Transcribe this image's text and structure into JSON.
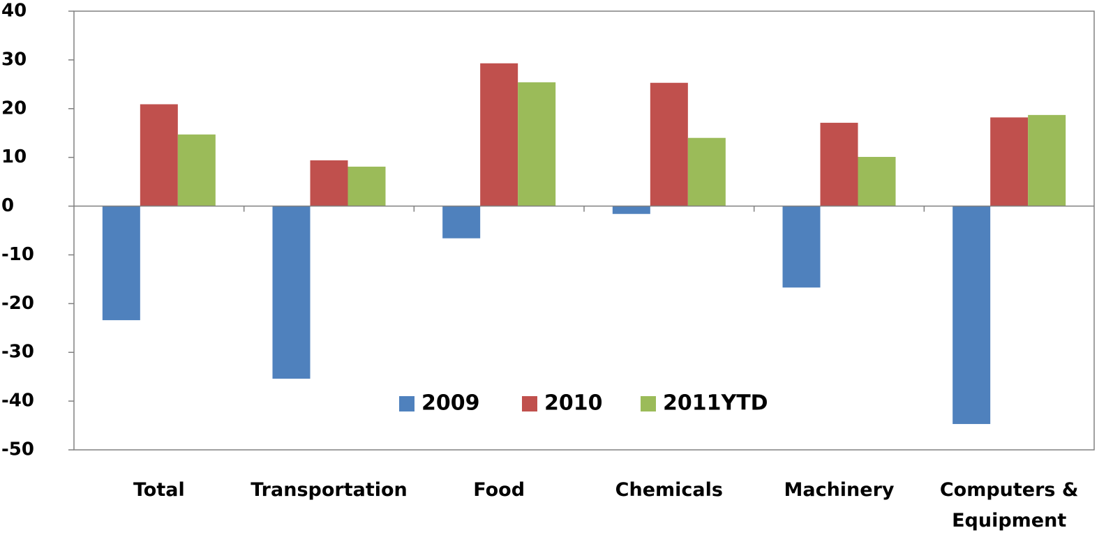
{
  "chart_data": {
    "type": "bar",
    "categories": [
      "Total",
      "Transportation",
      "Food",
      "Chemicals",
      "Machinery",
      "Computers & Equipment"
    ],
    "series": [
      {
        "name": "2009",
        "color": "#4f81bd",
        "values": [
          -23.4,
          -35.4,
          -6.6,
          -1.6,
          -16.7,
          -44.7
        ]
      },
      {
        "name": "2010",
        "color": "#c0504d",
        "values": [
          20.9,
          9.4,
          29.3,
          25.3,
          17.1,
          18.2
        ]
      },
      {
        "name": "2011YTD",
        "color": "#9bbb59",
        "values": [
          14.7,
          8.1,
          25.4,
          14.0,
          10.1,
          18.7
        ]
      }
    ],
    "ylim": [
      -50,
      40
    ],
    "yticks": [
      -50,
      -40,
      -30,
      -20,
      -10,
      0,
      10,
      20,
      30,
      40
    ],
    "legend": "bottom-center"
  }
}
